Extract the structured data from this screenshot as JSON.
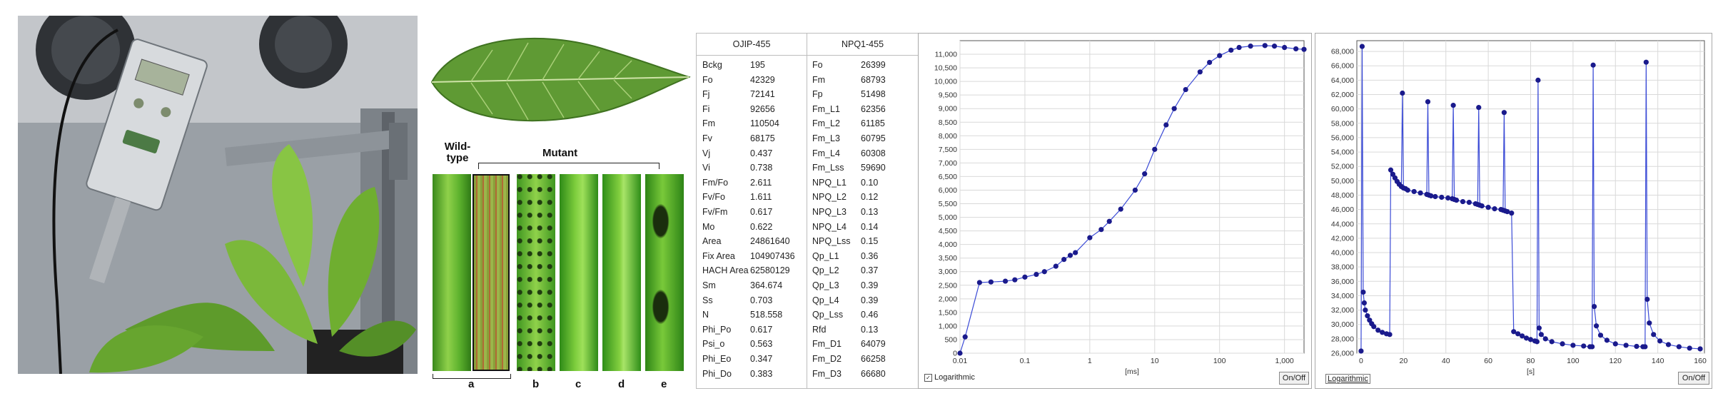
{
  "leaf_panel": {
    "wild_label": "Wild-type",
    "mutant_label": "Mutant",
    "strip_letters": [
      "a",
      "b",
      "c",
      "d",
      "e"
    ]
  },
  "table": {
    "col1_header": "OJIP-455",
    "col2_header": "NPQ1-455",
    "col1_rows": [
      [
        "Bckg",
        "195"
      ],
      [
        "Fo",
        "42329"
      ],
      [
        "Fj",
        "72141"
      ],
      [
        "Fi",
        "92656"
      ],
      [
        "Fm",
        "110504"
      ],
      [
        "Fv",
        "68175"
      ],
      [
        "Vj",
        "0.437"
      ],
      [
        "Vi",
        "0.738"
      ],
      [
        "Fm/Fo",
        "2.611"
      ],
      [
        "Fv/Fo",
        "1.611"
      ],
      [
        "Fv/Fm",
        "0.617"
      ],
      [
        "Mo",
        "0.622"
      ],
      [
        "Area",
        "24861640"
      ],
      [
        "Fix Area",
        "104907436"
      ],
      [
        "HACH Area",
        "62580129"
      ],
      [
        "Sm",
        "364.674"
      ],
      [
        "Ss",
        "0.703"
      ],
      [
        "N",
        "518.558"
      ],
      [
        "Phi_Po",
        "0.617"
      ],
      [
        "Psi_o",
        "0.563"
      ],
      [
        "Phi_Eo",
        "0.347"
      ],
      [
        "Phi_Do",
        "0.383"
      ]
    ],
    "col2_rows": [
      [
        "Fo",
        "26399"
      ],
      [
        "Fm",
        "68793"
      ],
      [
        "Fp",
        "51498"
      ],
      [
        "Fm_L1",
        "62356"
      ],
      [
        "Fm_L2",
        "61185"
      ],
      [
        "Fm_L3",
        "60795"
      ],
      [
        "Fm_L4",
        "60308"
      ],
      [
        "Fm_Lss",
        "59690"
      ],
      [
        "NPQ_L1",
        "0.10"
      ],
      [
        "NPQ_L2",
        "0.12"
      ],
      [
        "NPQ_L3",
        "0.13"
      ],
      [
        "NPQ_L4",
        "0.14"
      ],
      [
        "NPQ_Lss",
        "0.15"
      ],
      [
        "Qp_L1",
        "0.36"
      ],
      [
        "Qp_L2",
        "0.37"
      ],
      [
        "Qp_L3",
        "0.39"
      ],
      [
        "Qp_L4",
        "0.39"
      ],
      [
        "Qp_Lss",
        "0.46"
      ],
      [
        "Rfd",
        "0.13"
      ],
      [
        "Fm_D1",
        "64079"
      ],
      [
        "Fm_D2",
        "66258"
      ],
      [
        "Fm_D3",
        "66680"
      ]
    ]
  },
  "colors": {
    "series": "#1a1a8c",
    "line": "#3b4bd6",
    "grid": "#d9d9d9"
  },
  "chart_data": [
    {
      "type": "scatter",
      "xlabel": "[ms]",
      "ylabel": "",
      "xscale": "log",
      "xlim": [
        0.01,
        2000
      ],
      "ylim": [
        0,
        11500
      ],
      "x_ticks": [
        "0.01",
        "0.1",
        "1",
        "10",
        "100",
        "1,000"
      ],
      "x_tick_values": [
        0.01,
        0.1,
        1,
        10,
        100,
        1000
      ],
      "y_ticks": [
        "0",
        "500",
        "1,000",
        "1,500",
        "2,000",
        "2,500",
        "3,000",
        "3,500",
        "4,000",
        "4,500",
        "5,000",
        "5,500",
        "6,000",
        "6,500",
        "7,000",
        "7,500",
        "8,000",
        "8,500",
        "9,000",
        "9,500",
        "10,000",
        "10,500",
        "11,000"
      ],
      "y_tick_values": [
        0,
        500,
        1000,
        1500,
        2000,
        2500,
        3000,
        3500,
        4000,
        4500,
        5000,
        5500,
        6000,
        6500,
        7000,
        7500,
        8000,
        8500,
        9000,
        9500,
        10000,
        10500,
        11000
      ],
      "grid": true,
      "series": [
        {
          "x": [
            0.01,
            0.012,
            0.02,
            0.03,
            0.05,
            0.07,
            0.1,
            0.15,
            0.2,
            0.3,
            0.4,
            0.5,
            0.6,
            1,
            1.5,
            2,
            3,
            5,
            7,
            10,
            15,
            20,
            30,
            50,
            70,
            100,
            150,
            200,
            300,
            500,
            700,
            1000,
            1500,
            2000
          ],
          "y": [
            0,
            600,
            2600,
            2620,
            2650,
            2700,
            2800,
            2900,
            3000,
            3200,
            3450,
            3600,
            3700,
            4250,
            4550,
            4850,
            5300,
            6000,
            6600,
            7500,
            8400,
            9000,
            9700,
            10350,
            10700,
            10950,
            11150,
            11250,
            11300,
            11320,
            11300,
            11250,
            11200,
            11180
          ]
        }
      ],
      "checkbox_label": "Logarithmic",
      "button_label": "On/Off"
    },
    {
      "type": "line",
      "xlabel": "[s]",
      "ylabel": "",
      "xlim": [
        -2,
        162
      ],
      "ylim": [
        26000,
        69500
      ],
      "x_ticks": [
        "0",
        "20",
        "40",
        "60",
        "80",
        "100",
        "120",
        "140",
        "160"
      ],
      "x_tick_values": [
        0,
        20,
        40,
        60,
        80,
        100,
        120,
        140,
        160
      ],
      "y_ticks": [
        "26,000",
        "28,000",
        "30,000",
        "32,000",
        "34,000",
        "36,000",
        "38,000",
        "40,000",
        "42,000",
        "44,000",
        "46,000",
        "48,000",
        "50,000",
        "52,000",
        "54,000",
        "56,000",
        "58,000",
        "60,000",
        "62,000",
        "64,000",
        "66,000",
        "68,000"
      ],
      "y_tick_values": [
        26000,
        28000,
        30000,
        32000,
        34000,
        36000,
        38000,
        40000,
        42000,
        44000,
        46000,
        48000,
        50000,
        52000,
        54000,
        56000,
        58000,
        60000,
        62000,
        64000,
        66000,
        68000
      ],
      "grid": true,
      "series": [
        {
          "x": [
            0,
            0.5,
            1,
            1.5,
            2,
            3,
            4,
            5,
            6,
            8,
            10,
            12,
            13.5,
            14,
            15,
            16,
            17,
            18,
            19,
            19.5,
            20,
            21,
            22,
            25,
            28,
            31,
            31.5,
            32,
            33,
            35,
            38,
            41,
            43,
            43.5,
            44,
            45,
            48,
            51,
            54,
            55,
            55.5,
            56,
            57,
            60,
            63,
            66,
            67,
            67.5,
            68,
            69,
            71,
            72,
            74,
            76,
            78,
            80,
            82,
            83,
            83.5,
            84,
            85,
            87,
            90,
            95,
            100,
            105,
            108,
            109,
            109.5,
            110,
            111,
            113,
            116,
            120,
            125,
            130,
            133,
            134,
            134.5,
            135,
            136,
            138,
            141,
            145,
            150,
            155,
            160
          ],
          "y": [
            26300,
            68700,
            34500,
            33000,
            32000,
            31200,
            30600,
            30100,
            29700,
            29200,
            28900,
            28700,
            28600,
            51500,
            50900,
            50400,
            49900,
            49500,
            49200,
            62200,
            49000,
            48900,
            48700,
            48500,
            48300,
            48100,
            61000,
            48000,
            47900,
            47800,
            47700,
            47600,
            47500,
            60500,
            47400,
            47300,
            47100,
            47000,
            46800,
            46700,
            60200,
            46600,
            46500,
            46300,
            46100,
            46000,
            45900,
            59500,
            45800,
            45700,
            45500,
            29000,
            28700,
            28400,
            28100,
            27900,
            27700,
            27600,
            64000,
            29500,
            28600,
            28000,
            27600,
            27300,
            27100,
            27000,
            26900,
            26900,
            66100,
            32500,
            29800,
            28500,
            27800,
            27300,
            27100,
            26950,
            26900,
            26900,
            66500,
            33500,
            30200,
            28600,
            27700,
            27200,
            26900,
            26700,
            26600
          ]
        }
      ],
      "checkbox_label": "Logarithmic",
      "button_label": "On/Off"
    }
  ]
}
